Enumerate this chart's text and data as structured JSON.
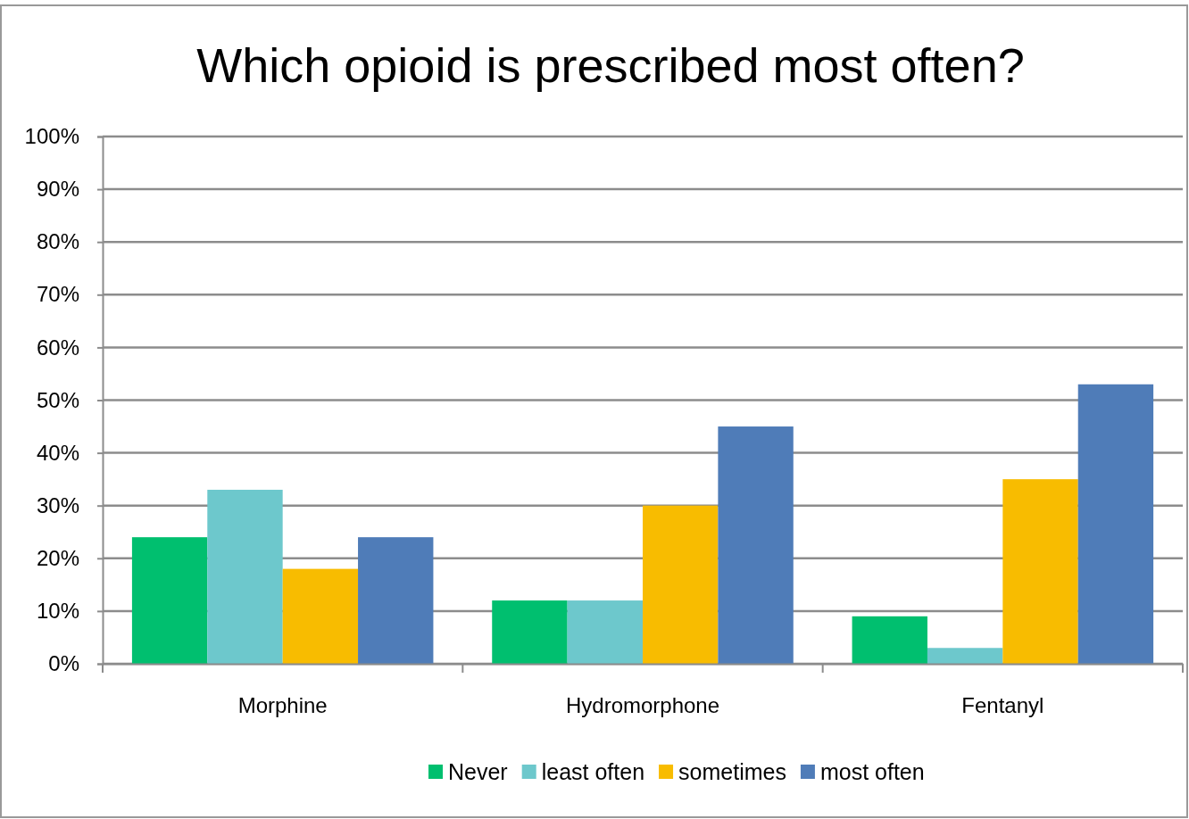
{
  "chart_data": {
    "type": "bar",
    "title": "Which opioid is prescribed most often?",
    "categories": [
      "Morphine",
      "Hydromorphone",
      "Fentanyl"
    ],
    "series": [
      {
        "name": "Never",
        "color": "#00bf6f",
        "values": [
          24,
          12,
          9
        ]
      },
      {
        "name": "least often",
        "color": "#6dc8cc",
        "values": [
          33,
          12,
          3
        ]
      },
      {
        "name": "sometimes",
        "color": "#f8bc00",
        "values": [
          18,
          30,
          35
        ]
      },
      {
        "name": "most often",
        "color": "#4f7cb8",
        "values": [
          24,
          45,
          53
        ]
      }
    ],
    "ylim": [
      0,
      100
    ],
    "yticks": [
      {
        "value": 0,
        "label": "0%"
      },
      {
        "value": 10,
        "label": "10%"
      },
      {
        "value": 20,
        "label": "20%"
      },
      {
        "value": 30,
        "label": "30%"
      },
      {
        "value": 40,
        "label": "40%"
      },
      {
        "value": 50,
        "label": "50%"
      },
      {
        "value": 60,
        "label": "60%"
      },
      {
        "value": 70,
        "label": "70%"
      },
      {
        "value": 80,
        "label": "80%"
      },
      {
        "value": 90,
        "label": "90%"
      },
      {
        "value": 100,
        "label": "100%"
      }
    ],
    "grid": "y",
    "legend": "bottom"
  }
}
